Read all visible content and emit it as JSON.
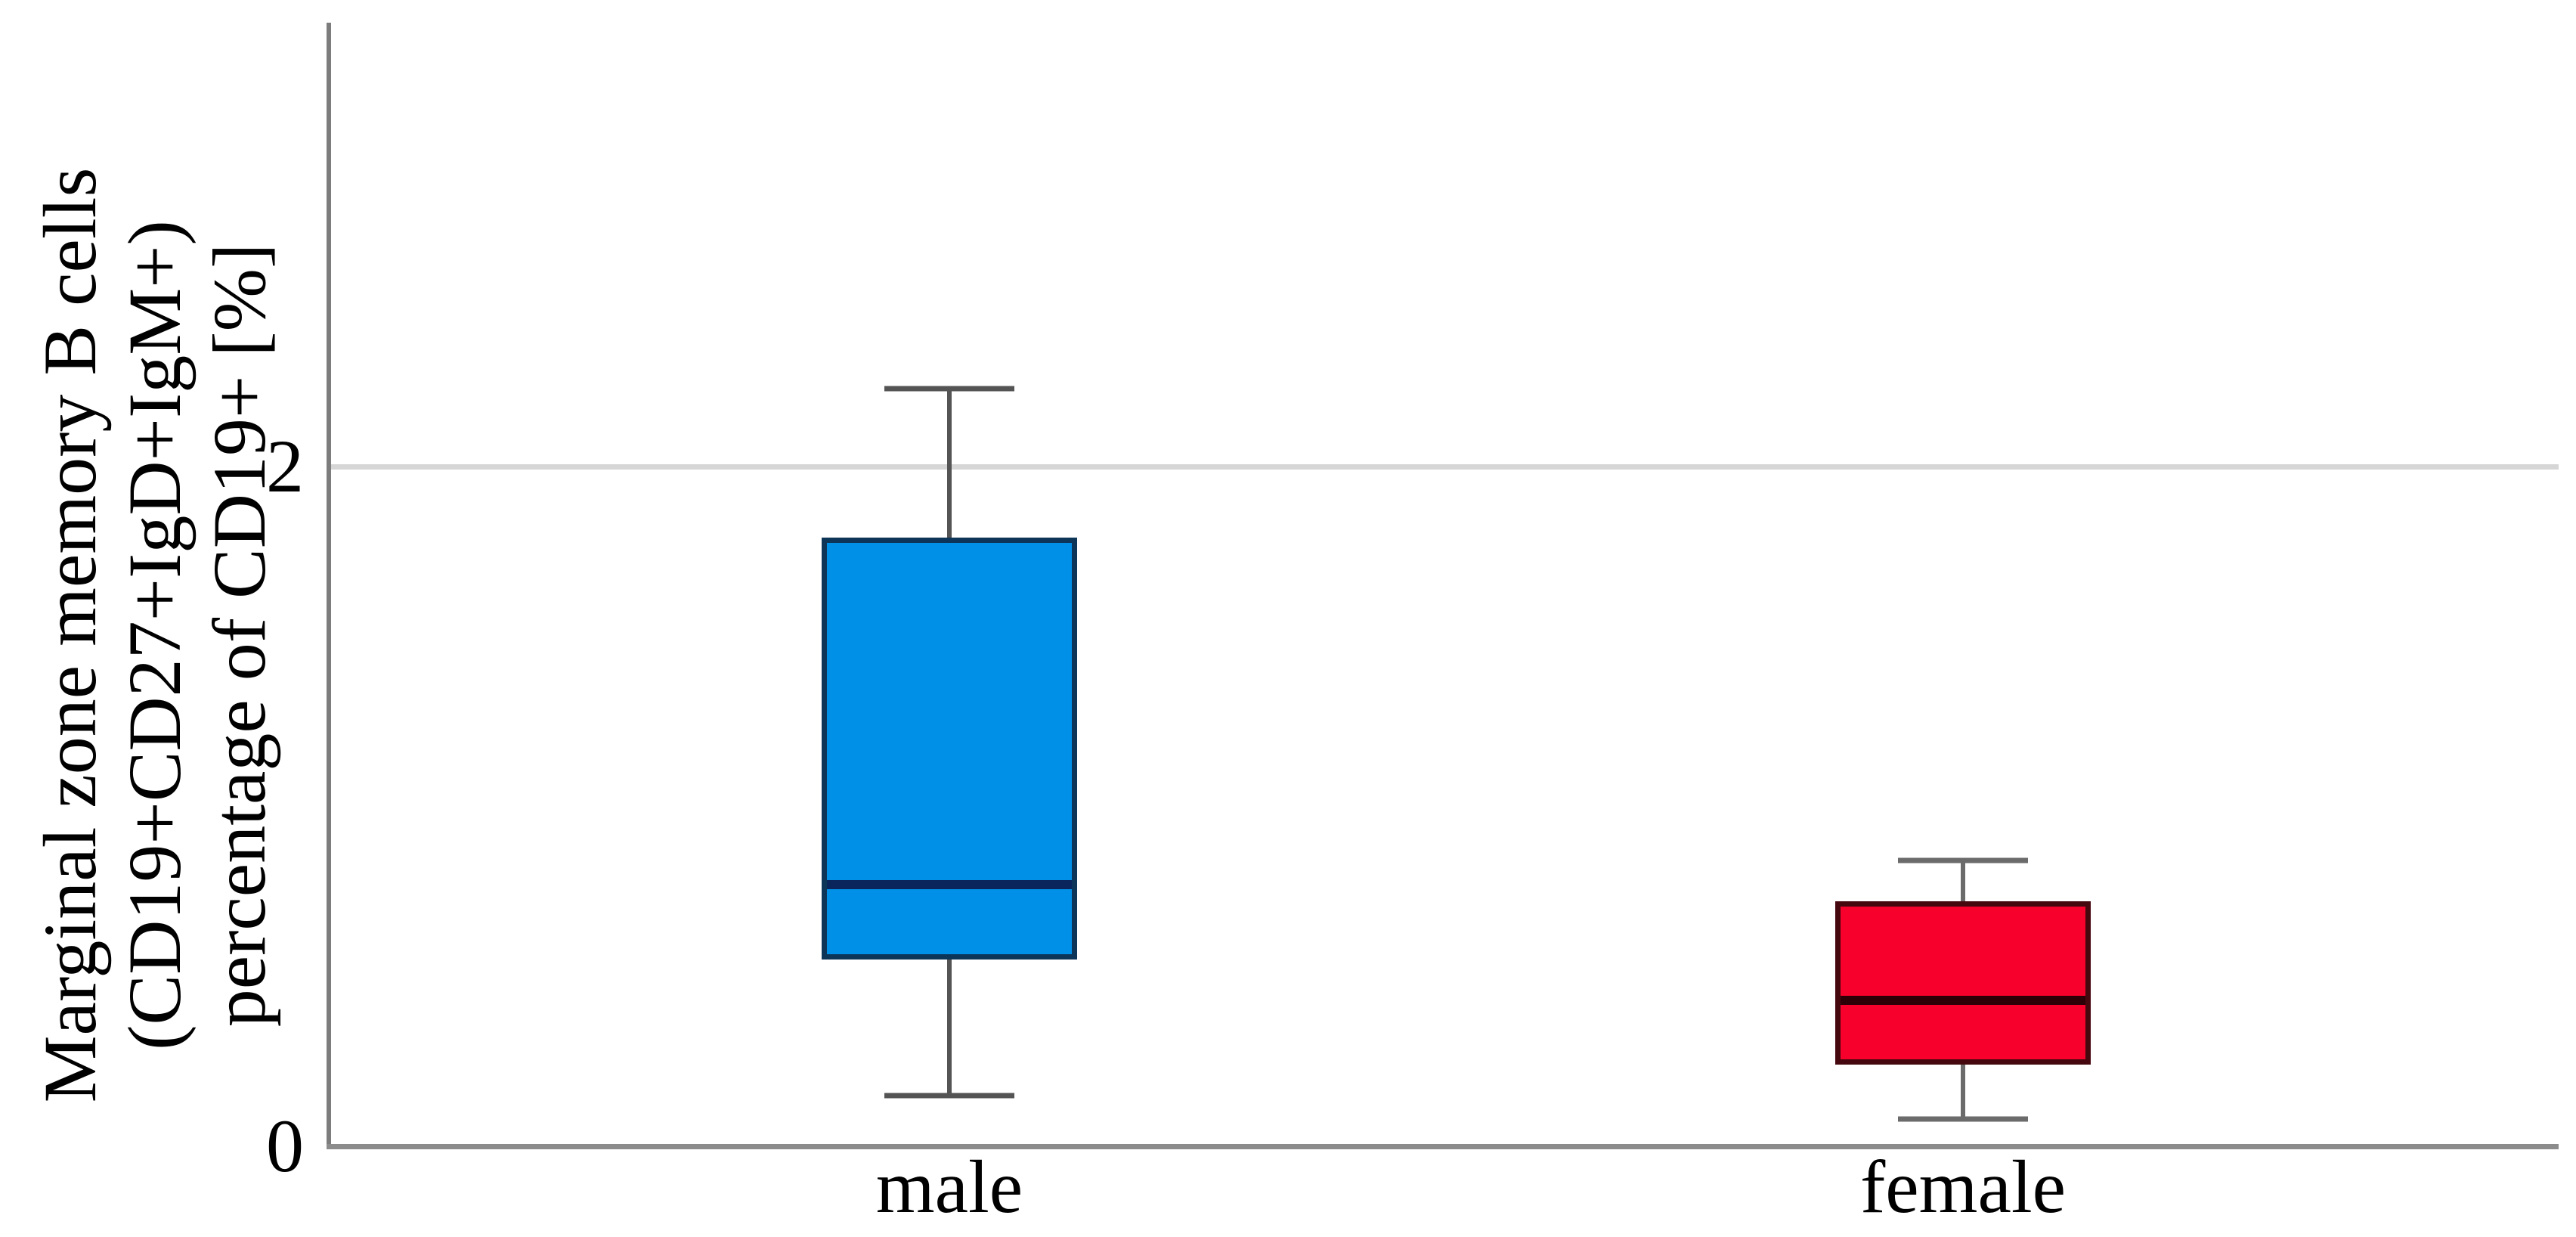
{
  "chart_data": {
    "type": "box",
    "title": "",
    "xlabel": "",
    "ylabel_lines": [
      "Marginal zone memory B cells",
      "(CD19+CD27+IgD+IgM+)",
      "percentage of CD19+ [%]"
    ],
    "categories": [
      "male",
      "female"
    ],
    "y_ticks": [
      {
        "value": 0,
        "label": "0"
      },
      {
        "value": 2,
        "label": "2"
      }
    ],
    "ylim": [
      0,
      3.3
    ],
    "grid_values": [
      2
    ],
    "legend": "none",
    "series": [
      {
        "name": "male",
        "whisker_low": 0.15,
        "q1": 0.55,
        "median": 0.77,
        "q3": 1.79,
        "whisker_high": 2.23,
        "fill_color": "#0090E8",
        "border_color": "#0D3557",
        "median_color": "#0A255C",
        "whisker_color": "#545454"
      },
      {
        "name": "female",
        "whisker_low": 0.08,
        "q1": 0.24,
        "median": 0.43,
        "q3": 0.72,
        "whisker_high": 0.84,
        "fill_color": "#F7002B",
        "border_color": "#46080F",
        "median_color": "#2D0008",
        "whisker_color": "#6B6B6B"
      }
    ],
    "colors": {
      "axis_line": "#8C8C8C",
      "gridline": "#D6D6D6",
      "text": "#000000"
    }
  }
}
